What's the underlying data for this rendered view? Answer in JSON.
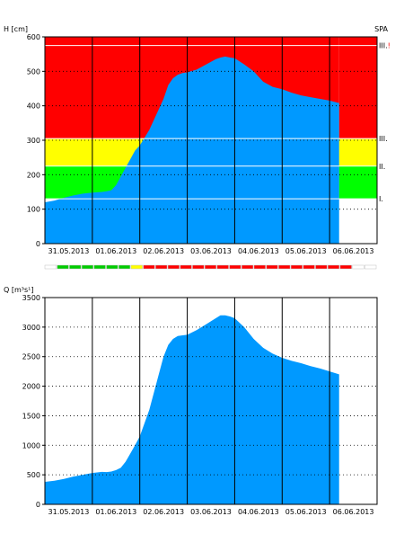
{
  "chart_data": [
    {
      "type": "area",
      "ylabel": "H [cm]",
      "station": "SPA",
      "ylim": [
        0,
        600
      ],
      "y_ticks": [
        0,
        100,
        200,
        300,
        400,
        500,
        600
      ],
      "x_tick_labels": [
        "31.05.2013",
        "01.06.2013",
        "02.06.2013",
        "03.06.2013",
        "04.06.2013",
        "05.06.2013",
        "06.06.2013"
      ],
      "x_range_days": [
        0,
        7
      ],
      "grid": "dotted",
      "bands": [
        {
          "label": "I.",
          "from": 130,
          "to": 225,
          "color": "#00ff00"
        },
        {
          "label": "II.",
          "from": 225,
          "to": 305,
          "color": "#ffff00"
        },
        {
          "label": "III.",
          "from": 305,
          "to": 600,
          "color": "#ff0000"
        }
      ],
      "threshold_lines": [
        {
          "label": "I.",
          "value": 130
        },
        {
          "label": "II.",
          "value": 225
        },
        {
          "label": "III.",
          "value": 305
        },
        {
          "label": "III.!",
          "value": 575
        }
      ],
      "area_color": "#0099ff",
      "band_end_day": 6.2,
      "x": [
        0,
        0.2,
        0.4,
        0.6,
        0.8,
        1.0,
        1.2,
        1.3,
        1.4,
        1.5,
        1.6,
        1.7,
        1.8,
        1.9,
        2.0,
        2.2,
        2.3,
        2.4,
        2.5,
        2.6,
        2.7,
        2.8,
        2.9,
        3.0,
        3.2,
        3.4,
        3.6,
        3.7,
        3.8,
        3.9,
        4.0,
        4.2,
        4.4,
        4.6,
        4.8,
        5.0,
        5.2,
        5.4,
        5.6,
        5.8,
        6.0,
        6.2
      ],
      "y": [
        120,
        125,
        133,
        140,
        145,
        148,
        150,
        152,
        155,
        170,
        195,
        220,
        245,
        270,
        285,
        330,
        360,
        390,
        420,
        460,
        480,
        490,
        495,
        497,
        505,
        520,
        535,
        540,
        543,
        540,
        538,
        520,
        500,
        470,
        455,
        448,
        438,
        430,
        425,
        420,
        415,
        408
      ]
    },
    {
      "type": "area",
      "ylabel": "Q [m³s¹]",
      "ylim": [
        0,
        3500
      ],
      "y_ticks": [
        0,
        500,
        1000,
        1500,
        2000,
        2500,
        3000,
        3500
      ],
      "x_tick_labels": [
        "31.05.2013",
        "01.06.2013",
        "02.06.2013",
        "03.06.2013",
        "04.06.2013",
        "05.06.2013",
        "06.06.2013"
      ],
      "x_range_days": [
        0,
        7
      ],
      "grid": "dotted",
      "area_color": "#0099ff",
      "x": [
        0,
        0.2,
        0.4,
        0.6,
        0.8,
        1.0,
        1.2,
        1.3,
        1.4,
        1.5,
        1.6,
        1.7,
        1.8,
        1.9,
        2.0,
        2.2,
        2.3,
        2.4,
        2.5,
        2.6,
        2.7,
        2.8,
        2.9,
        3.0,
        3.2,
        3.4,
        3.6,
        3.7,
        3.8,
        3.9,
        4.0,
        4.2,
        4.4,
        4.6,
        4.8,
        5.0,
        5.2,
        5.4,
        5.6,
        5.8,
        6.0,
        6.2
      ],
      "y": [
        380,
        400,
        430,
        470,
        500,
        530,
        550,
        545,
        555,
        580,
        620,
        720,
        860,
        1000,
        1150,
        1600,
        1900,
        2200,
        2500,
        2700,
        2800,
        2850,
        2860,
        2870,
        2950,
        3050,
        3150,
        3200,
        3200,
        3180,
        3150,
        3000,
        2800,
        2650,
        2550,
        2480,
        2430,
        2390,
        2340,
        2300,
        2250,
        2200
      ]
    }
  ],
  "status_bar": {
    "segments": [
      "none",
      "green",
      "green",
      "green",
      "green",
      "green",
      "green",
      "yellow",
      "red",
      "red",
      "red",
      "red",
      "red",
      "red",
      "red",
      "red",
      "red",
      "red",
      "red",
      "red",
      "red",
      "red",
      "red",
      "red",
      "red",
      "none",
      "none"
    ],
    "colors": {
      "none": "#ffffff",
      "green": "#00cc00",
      "yellow": "#ffff00",
      "red": "#ff0000"
    }
  }
}
